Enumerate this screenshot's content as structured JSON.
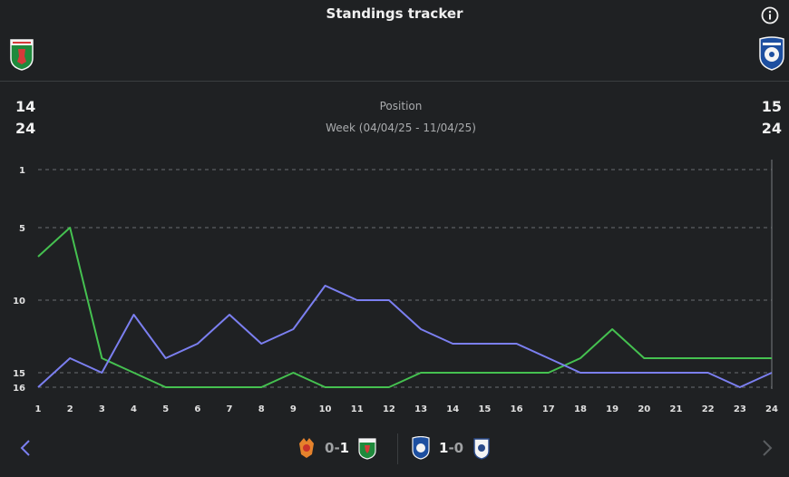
{
  "header": {
    "title": "Standings tracker"
  },
  "teams": {
    "left": {
      "position": "14",
      "week": "24",
      "color": "#45c150"
    },
    "right": {
      "position": "15",
      "week": "24",
      "color": "#7b7ff0"
    }
  },
  "labels": {
    "position": "Position",
    "week": "Week (04/04/25 - 11/04/25)"
  },
  "chart_data": {
    "type": "line",
    "x": [
      1,
      2,
      3,
      4,
      5,
      6,
      7,
      8,
      9,
      10,
      11,
      12,
      13,
      14,
      15,
      16,
      17,
      18,
      19,
      20,
      21,
      22,
      23,
      24
    ],
    "y_ticks": [
      1,
      5,
      10,
      15,
      16
    ],
    "y_axis": "inverted",
    "ylim": [
      1,
      16
    ],
    "grid": true,
    "series": [
      {
        "color": "#45c150",
        "values": [
          7,
          5,
          14,
          15,
          16,
          16,
          16,
          16,
          15,
          16,
          16,
          16,
          15,
          15,
          15,
          15,
          15,
          14,
          12,
          14,
          14,
          14,
          14,
          14
        ]
      },
      {
        "color": "#7b7ff0",
        "values": [
          16,
          14,
          15,
          11,
          14,
          13,
          11,
          13,
          12,
          9,
          10,
          10,
          12,
          13,
          13,
          13,
          14,
          15,
          15,
          15,
          15,
          15,
          16,
          15
        ]
      }
    ]
  },
  "matches": [
    {
      "score_home": "0",
      "dash": "-",
      "score_away": "1"
    },
    {
      "score_home": "1",
      "dash": "-",
      "score_away": "0"
    }
  ]
}
